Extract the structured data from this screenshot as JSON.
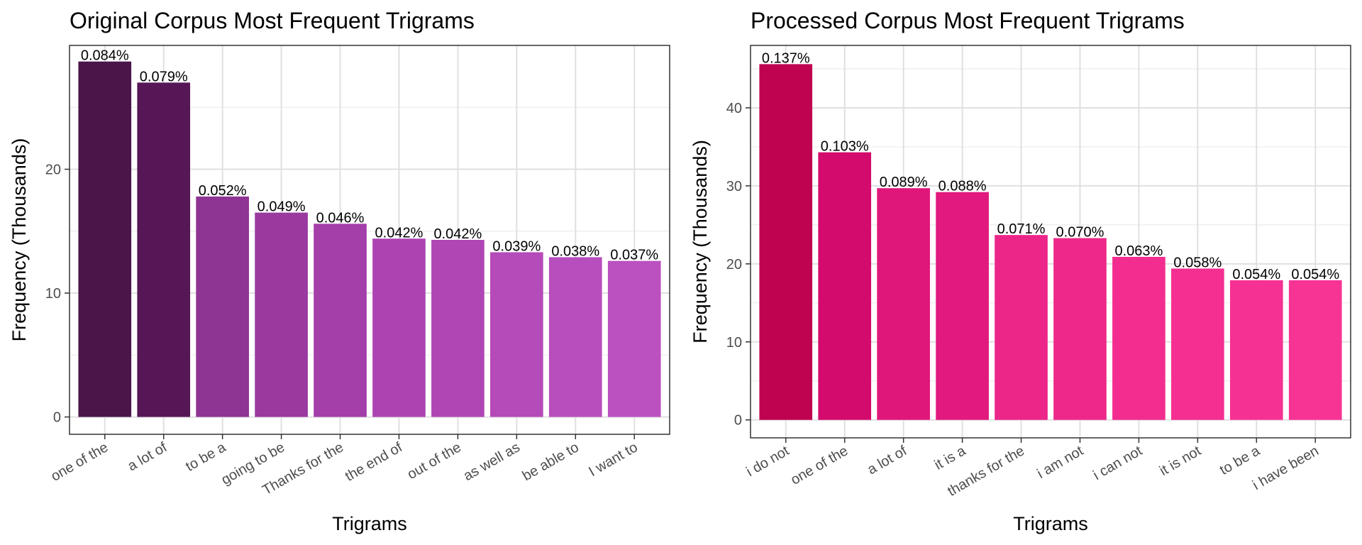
{
  "chart_data": [
    {
      "type": "bar",
      "title": "Original Corpus Most Frequent Trigrams",
      "xlabel": "Trigrams",
      "ylabel": "Frequency (Thousands)",
      "ylim": [
        -1.4,
        30
      ],
      "yticks": [
        0,
        10,
        20
      ],
      "grid": true,
      "categories": [
        "one of the",
        "a lot of",
        "to be a",
        "going to be",
        "Thanks for the",
        "the end of",
        "out of the",
        "as well as",
        "be able to",
        "I want to"
      ],
      "values": [
        28.7,
        27.0,
        17.8,
        16.5,
        15.6,
        14.4,
        14.3,
        13.3,
        12.9,
        12.6
      ],
      "data_labels": [
        "0.084%",
        "0.079%",
        "0.052%",
        "0.049%",
        "0.046%",
        "0.042%",
        "0.042%",
        "0.039%",
        "0.038%",
        "0.037%"
      ],
      "colors": [
        "#4a1549",
        "#571756",
        "#8e3493",
        "#9a3a9f",
        "#a43ea9",
        "#ac43b1",
        "#b046b4",
        "#b54ab9",
        "#b84dbd",
        "#bb50c0"
      ]
    },
    {
      "type": "bar",
      "title": "Processed Corpus Most Frequent Trigrams",
      "xlabel": "Trigrams",
      "ylabel": "Frequency (Thousands)",
      "ylim": [
        -2.3,
        48
      ],
      "yticks": [
        0,
        10,
        20,
        30,
        40
      ],
      "grid": true,
      "categories": [
        "i do not",
        "one of the",
        "a lot of",
        "it is a",
        "thanks for the",
        "i am not",
        "i can not",
        "it is not",
        "to be a",
        "i have been"
      ],
      "values": [
        45.6,
        34.3,
        29.7,
        29.2,
        23.7,
        23.3,
        20.9,
        19.4,
        17.9,
        17.9
      ],
      "data_labels": [
        "0.137%",
        "0.103%",
        "0.089%",
        "0.088%",
        "0.071%",
        "0.070%",
        "0.063%",
        "0.058%",
        "0.054%",
        "0.054%"
      ],
      "colors": [
        "#bf0350",
        "#d30b6c",
        "#e0177b",
        "#e2197e",
        "#ec2689",
        "#ee288b",
        "#f22d8f",
        "#f42f91",
        "#f53193",
        "#f73394"
      ]
    }
  ]
}
